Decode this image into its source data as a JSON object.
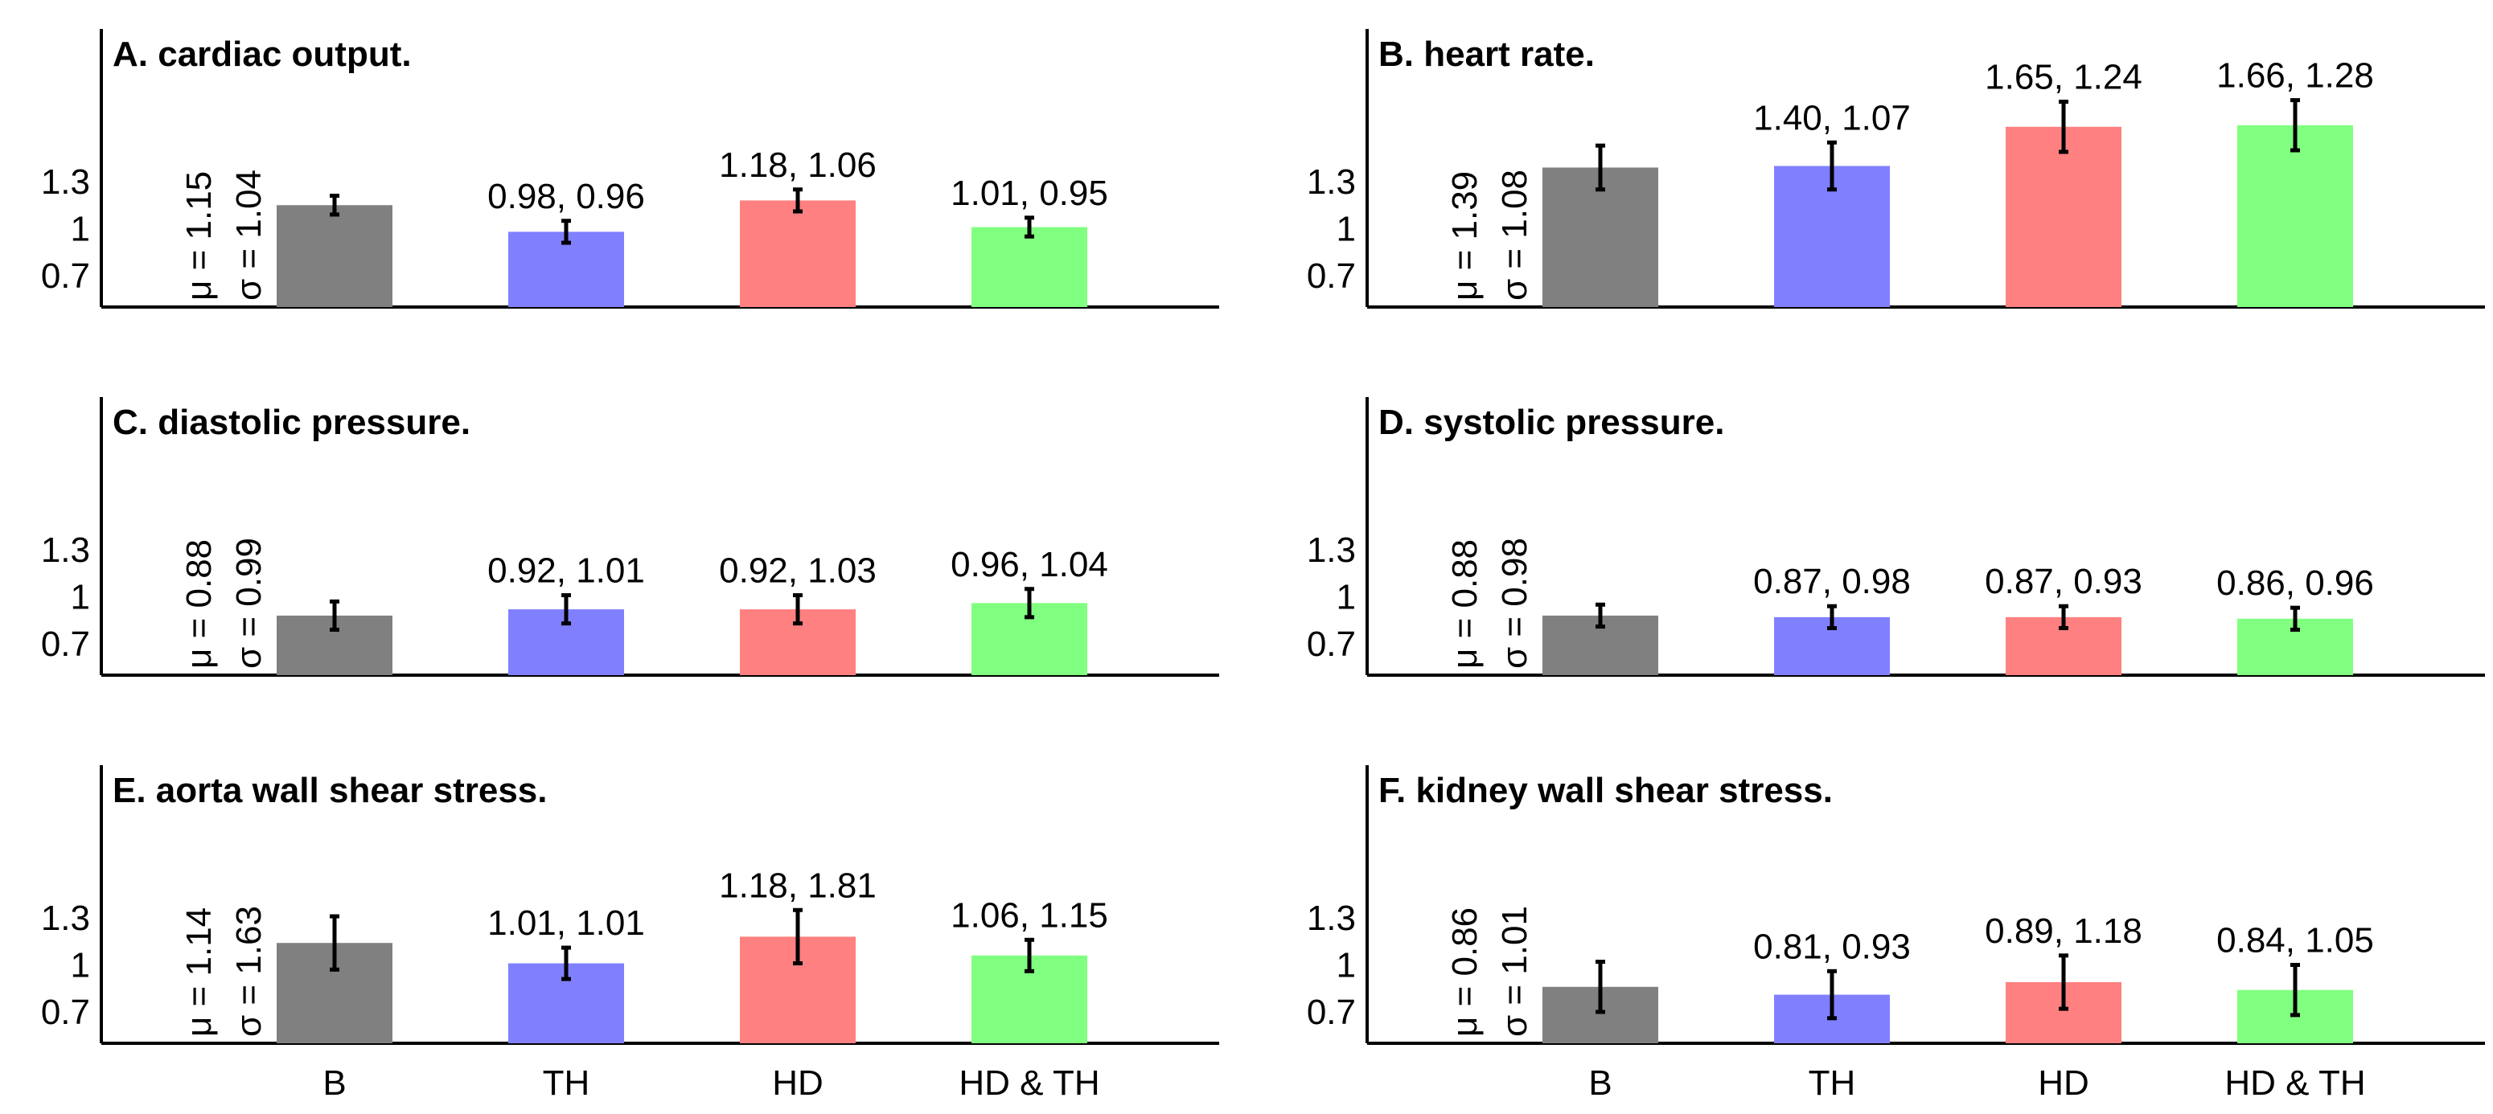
{
  "chart_data": [
    {
      "type": "bar",
      "title": "A. cardiac output.",
      "categories": [
        "B",
        "TH",
        "HD",
        "HD & TH"
      ],
      "values": [
        1.15,
        0.98,
        1.18,
        1.01
      ],
      "error": [
        0.06,
        0.07,
        0.07,
        0.06
      ],
      "colors": [
        "#808080",
        "#8080ff",
        "#ff8080",
        "#80ff80"
      ],
      "labels": [
        "",
        "0.98, 0.96",
        "1.18, 1.06",
        "1.01, 0.95"
      ],
      "baseline": {
        "mu": "μ = 1.15",
        "sigma": "σ = 1.04"
      },
      "yticks": [
        "1.3",
        "1",
        "0.7"
      ],
      "ylim": [
        0.5,
        2.3
      ]
    },
    {
      "type": "bar",
      "title": "B. heart rate.",
      "categories": [
        "B",
        "TH",
        "HD",
        "HD & TH"
      ],
      "values": [
        1.39,
        1.4,
        1.65,
        1.66
      ],
      "error": [
        0.14,
        0.15,
        0.16,
        0.16
      ],
      "colors": [
        "#808080",
        "#8080ff",
        "#ff8080",
        "#80ff80"
      ],
      "labels": [
        "",
        "1.40, 1.07",
        "1.65, 1.24",
        "1.66, 1.28"
      ],
      "baseline": {
        "mu": "μ = 1.39",
        "sigma": "σ = 1.08"
      },
      "yticks": [
        "1.3",
        "1",
        "0.7"
      ],
      "ylim": [
        0.5,
        2.3
      ]
    },
    {
      "type": "bar",
      "title": "C. diastolic pressure.",
      "categories": [
        "B",
        "TH",
        "HD",
        "HD & TH"
      ],
      "values": [
        0.88,
        0.92,
        0.92,
        0.96
      ],
      "error": [
        0.09,
        0.09,
        0.09,
        0.09
      ],
      "colors": [
        "#808080",
        "#8080ff",
        "#ff8080",
        "#80ff80"
      ],
      "labels": [
        "",
        "0.92, 1.01",
        "0.92, 1.03",
        "0.96, 1.04"
      ],
      "baseline": {
        "mu": "μ = 0.88",
        "sigma": "σ = 0.99"
      },
      "yticks": [
        "1.3",
        "1",
        "0.7"
      ],
      "ylim": [
        0.5,
        2.3
      ]
    },
    {
      "type": "bar",
      "title": "D. systolic pressure.",
      "categories": [
        "B",
        "TH",
        "HD",
        "HD & TH"
      ],
      "values": [
        0.88,
        0.87,
        0.87,
        0.86
      ],
      "error": [
        0.07,
        0.07,
        0.07,
        0.07
      ],
      "colors": [
        "#808080",
        "#8080ff",
        "#ff8080",
        "#80ff80"
      ],
      "labels": [
        "",
        "0.87, 0.98",
        "0.87, 0.93",
        "0.86, 0.96"
      ],
      "baseline": {
        "mu": "μ = 0.88",
        "sigma": "σ = 0.98"
      },
      "yticks": [
        "1.3",
        "1",
        "0.7"
      ],
      "ylim": [
        0.5,
        2.3
      ]
    },
    {
      "type": "bar",
      "title": "E. aorta wall shear stress.",
      "categories": [
        "B",
        "TH",
        "HD",
        "HD & TH"
      ],
      "values": [
        1.14,
        1.01,
        1.18,
        1.06
      ],
      "error": [
        0.17,
        0.1,
        0.17,
        0.1
      ],
      "colors": [
        "#808080",
        "#8080ff",
        "#ff8080",
        "#80ff80"
      ],
      "labels": [
        "",
        "1.01, 1.01",
        "1.18, 1.81",
        "1.06, 1.15"
      ],
      "baseline": {
        "mu": "μ = 1.14",
        "sigma": "σ = 1.63"
      },
      "yticks": [
        "1.3",
        "1",
        "0.7"
      ],
      "ylim": [
        0.5,
        2.3
      ]
    },
    {
      "type": "bar",
      "title": "F. kidney wall shear stress.",
      "categories": [
        "B",
        "TH",
        "HD",
        "HD & TH"
      ],
      "values": [
        0.86,
        0.81,
        0.89,
        0.84
      ],
      "error": [
        0.16,
        0.15,
        0.17,
        0.16
      ],
      "colors": [
        "#808080",
        "#8080ff",
        "#ff8080",
        "#80ff80"
      ],
      "labels": [
        "",
        "0.81, 0.93",
        "0.89, 1.18",
        "0.84, 1.05"
      ],
      "baseline": {
        "mu": "μ = 0.86",
        "sigma": "σ = 1.01"
      },
      "yticks": [
        "1.3",
        "1",
        "0.7"
      ],
      "ylim": [
        0.5,
        2.3
      ]
    }
  ]
}
